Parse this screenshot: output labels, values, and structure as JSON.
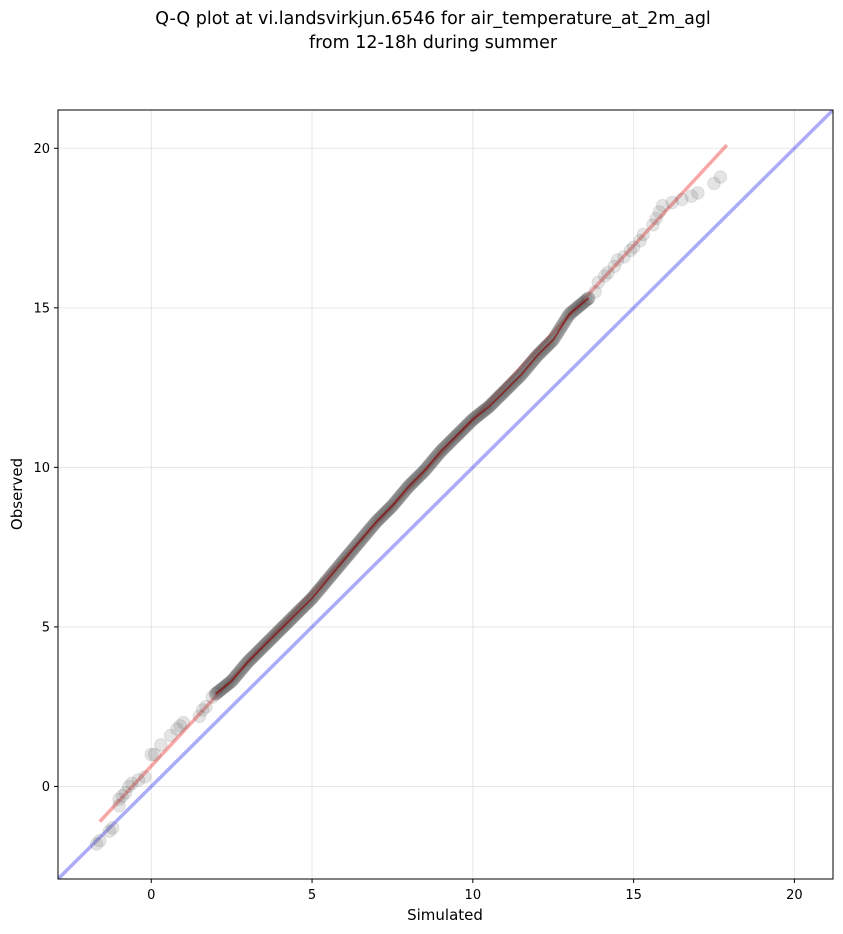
{
  "chart_data": {
    "type": "scatter",
    "title_line1": "Q-Q plot at vi.landsvirkjun.6546 for air_temperature_at_2m_agl",
    "title_line2": "from 12-18h during summer",
    "xlabel": "Simulated",
    "ylabel": "Observed",
    "xlim": [
      -2.9,
      21.2
    ],
    "ylim": [
      -2.9,
      21.2
    ],
    "xticks": [
      0,
      5,
      10,
      15,
      20
    ],
    "yticks": [
      0,
      5,
      10,
      15,
      20
    ],
    "xtick_labels": [
      "0",
      "5",
      "10",
      "15",
      "20"
    ],
    "ytick_labels": [
      "0",
      "5",
      "10",
      "15",
      "20"
    ],
    "grid": true,
    "identity_line": {
      "color": "#0000ee",
      "from": [
        -2.9,
        -2.9
      ],
      "to": [
        21.2,
        21.2
      ]
    },
    "fit_line": {
      "color": "#ee0000",
      "from": [
        -1.6,
        -1.1
      ],
      "to": [
        17.9,
        20.1
      ]
    },
    "curve_line_color": "#8b0000",
    "marker_color": "#555555",
    "tail_points": [
      [
        -1.7,
        -1.8
      ],
      [
        -1.6,
        -1.7
      ],
      [
        -1.3,
        -1.4
      ],
      [
        -1.2,
        -1.3
      ],
      [
        -1.0,
        -0.6
      ],
      [
        -1.0,
        -0.4
      ],
      [
        -0.9,
        -0.3
      ],
      [
        -0.8,
        -0.2
      ],
      [
        -0.7,
        0.0
      ],
      [
        -0.6,
        0.1
      ],
      [
        -0.4,
        0.2
      ],
      [
        -0.2,
        0.3
      ],
      [
        0.0,
        1.0
      ],
      [
        0.1,
        1.0
      ],
      [
        0.3,
        1.3
      ],
      [
        0.6,
        1.6
      ],
      [
        0.8,
        1.8
      ],
      [
        0.9,
        1.9
      ],
      [
        1.0,
        2.0
      ],
      [
        1.5,
        2.2
      ],
      [
        1.6,
        2.4
      ],
      [
        1.7,
        2.5
      ],
      [
        1.9,
        2.8
      ],
      [
        2.0,
        2.9
      ],
      [
        13.6,
        15.3
      ],
      [
        13.8,
        15.5
      ],
      [
        13.9,
        15.8
      ],
      [
        14.1,
        16.0
      ],
      [
        14.2,
        16.1
      ],
      [
        14.4,
        16.3
      ],
      [
        14.5,
        16.5
      ],
      [
        14.7,
        16.6
      ],
      [
        14.9,
        16.8
      ],
      [
        15.0,
        16.9
      ],
      [
        15.2,
        17.1
      ],
      [
        15.3,
        17.3
      ],
      [
        15.6,
        17.6
      ],
      [
        15.7,
        17.8
      ],
      [
        15.8,
        18.0
      ],
      [
        15.9,
        18.2
      ],
      [
        16.2,
        18.3
      ],
      [
        16.5,
        18.4
      ],
      [
        16.8,
        18.5
      ],
      [
        17.0,
        18.6
      ],
      [
        17.5,
        18.9
      ],
      [
        17.7,
        19.1
      ]
    ],
    "dense_points": [
      [
        2.0,
        2.9
      ],
      [
        2.5,
        3.3
      ],
      [
        3.0,
        3.9
      ],
      [
        3.5,
        4.4
      ],
      [
        4.0,
        4.9
      ],
      [
        4.5,
        5.4
      ],
      [
        5.0,
        5.9
      ],
      [
        5.5,
        6.5
      ],
      [
        6.0,
        7.1
      ],
      [
        6.5,
        7.7
      ],
      [
        7.0,
        8.3
      ],
      [
        7.5,
        8.8
      ],
      [
        8.0,
        9.4
      ],
      [
        8.5,
        9.9
      ],
      [
        9.0,
        10.5
      ],
      [
        9.5,
        11.0
      ],
      [
        10.0,
        11.5
      ],
      [
        10.5,
        11.9
      ],
      [
        11.0,
        12.4
      ],
      [
        11.5,
        12.9
      ],
      [
        12.0,
        13.5
      ],
      [
        12.5,
        14.0
      ],
      [
        13.0,
        14.8
      ],
      [
        13.6,
        15.3
      ]
    ]
  }
}
